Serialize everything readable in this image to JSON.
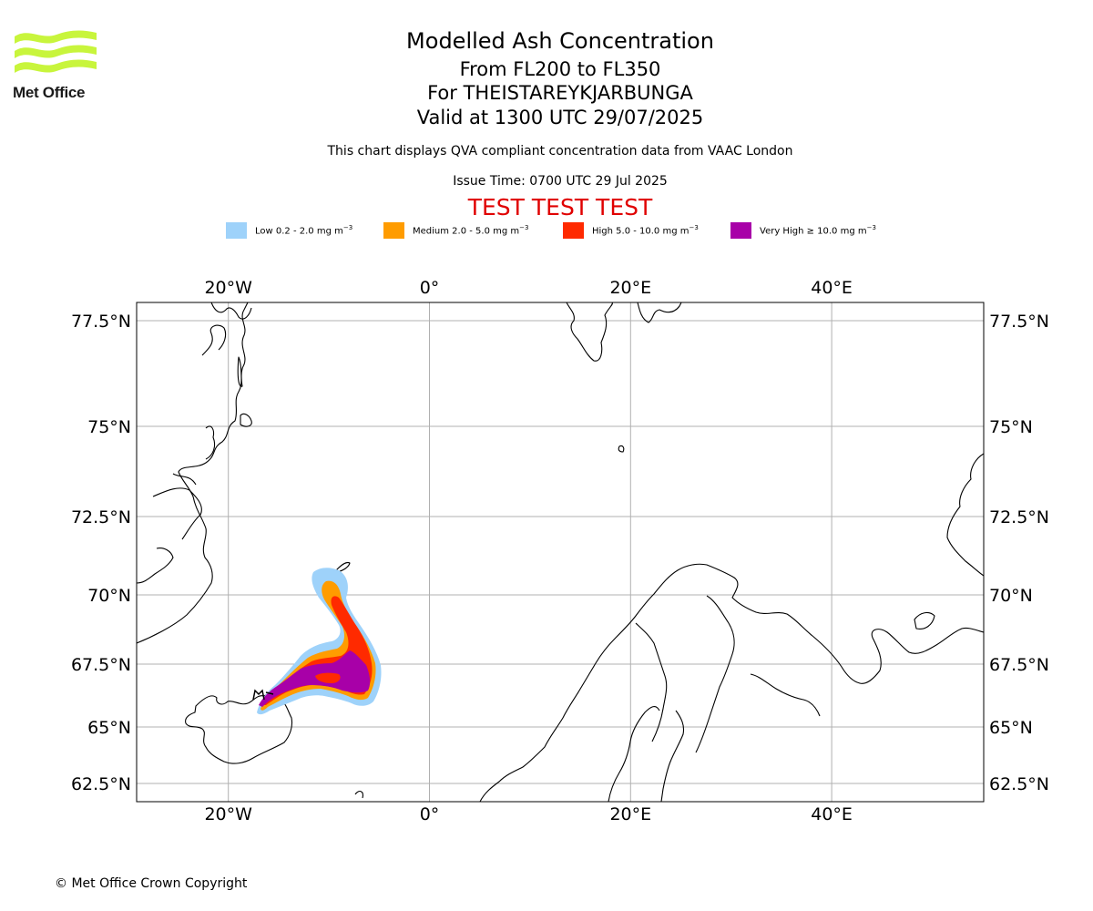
{
  "branding": {
    "logo_text": "Met Office"
  },
  "header": {
    "title": "Modelled Ash Concentration",
    "levels": "From FL200 to FL350",
    "volcano": "For THEISTAREYKJARBUNGA",
    "valid": "Valid at 1300 UTC 29/07/2025",
    "subtitle": "This chart displays QVA compliant concentration data from VAAC London",
    "issue_time": "Issue Time: 0700 UTC 29 Jul 2025",
    "test_banner": "TEST TEST TEST"
  },
  "legend": [
    {
      "label": "Low 0.2 - 2.0 mg m",
      "unit_exp": "−3",
      "color": "#9ed2fa"
    },
    {
      "label": "Medium 2.0 - 5.0 mg m",
      "unit_exp": "−3",
      "color": "#ff9c00"
    },
    {
      "label": "High 5.0 - 10.0 mg m",
      "unit_exp": "−3",
      "color": "#ff2a00"
    },
    {
      "label": "Very High  ≥  10.0 mg m",
      "unit_exp": "−3",
      "color": "#a800a8"
    }
  ],
  "map": {
    "lon_ticks": [
      {
        "value": -20,
        "label": "20°W"
      },
      {
        "value": 0,
        "label": "0°"
      },
      {
        "value": 20,
        "label": "20°E"
      },
      {
        "value": 40,
        "label": "40°E"
      }
    ],
    "lat_ticks": [
      {
        "value": 77.5,
        "label": "77.5°N"
      },
      {
        "value": 75,
        "label": "75°N"
      },
      {
        "value": 72.5,
        "label": "72.5°N"
      },
      {
        "value": 70,
        "label": "70°N"
      },
      {
        "value": 67.5,
        "label": "67.5°N"
      },
      {
        "value": 65,
        "label": "65°N"
      },
      {
        "value": 62.5,
        "label": "62.5°N"
      }
    ],
    "grid": true,
    "colors": {
      "coast": "#000000",
      "grid": "#b0b0b0"
    }
  },
  "footer": {
    "copyright": "© Met Office Crown Copyright"
  }
}
